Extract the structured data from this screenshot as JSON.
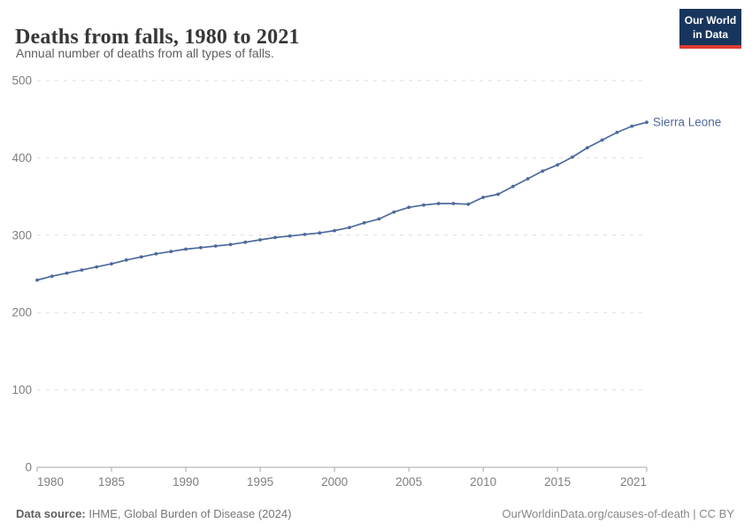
{
  "header": {
    "title": "Deaths from falls, 1980 to 2021",
    "subtitle": "Annual number of deaths from all types of falls.",
    "logo": {
      "line1": "Our World",
      "line2": "in Data"
    }
  },
  "chart_data": {
    "type": "line",
    "title": "Deaths from falls, 1980 to 2021",
    "subtitle": "Annual number of deaths from all types of falls.",
    "xlabel": "",
    "ylabel": "",
    "xlim": [
      1980,
      2021
    ],
    "ylim": [
      0,
      500
    ],
    "x_ticks": [
      1980,
      1985,
      1990,
      1995,
      2000,
      2005,
      2010,
      2015,
      2021
    ],
    "y_ticks": [
      0,
      100,
      200,
      300,
      400,
      500
    ],
    "grid": "horizontal-dashed",
    "legend_position": "end-of-line-label",
    "series": [
      {
        "name": "Sierra Leone",
        "color": "#4C6A9C",
        "x": [
          1980,
          1981,
          1982,
          1983,
          1984,
          1985,
          1986,
          1987,
          1988,
          1989,
          1990,
          1991,
          1992,
          1993,
          1994,
          1995,
          1996,
          1997,
          1998,
          1999,
          2000,
          2001,
          2002,
          2003,
          2004,
          2005,
          2006,
          2007,
          2008,
          2009,
          2010,
          2011,
          2012,
          2013,
          2014,
          2015,
          2016,
          2017,
          2018,
          2019,
          2020,
          2021
        ],
        "values": [
          242,
          247,
          251,
          255,
          259,
          263,
          268,
          272,
          276,
          279,
          282,
          284,
          286,
          288,
          291,
          294,
          297,
          299,
          301,
          303,
          306,
          310,
          316,
          321,
          330,
          336,
          339,
          341,
          341,
          340,
          349,
          353,
          363,
          373,
          383,
          391,
          401,
          413,
          423,
          433,
          441,
          446
        ]
      }
    ]
  },
  "footer": {
    "source_label": "Data source:",
    "source_text": " IHME, Global Burden of Disease (2024)",
    "credit": "OurWorldinData.org/causes-of-death | CC BY"
  },
  "colors": {
    "line": "#4C6A9C",
    "logo_bg": "#18365d",
    "logo_accent": "#dd3a33",
    "grid": "#dedede",
    "axis": "#a7a7a7",
    "tick_text": "#7e7e7e"
  }
}
